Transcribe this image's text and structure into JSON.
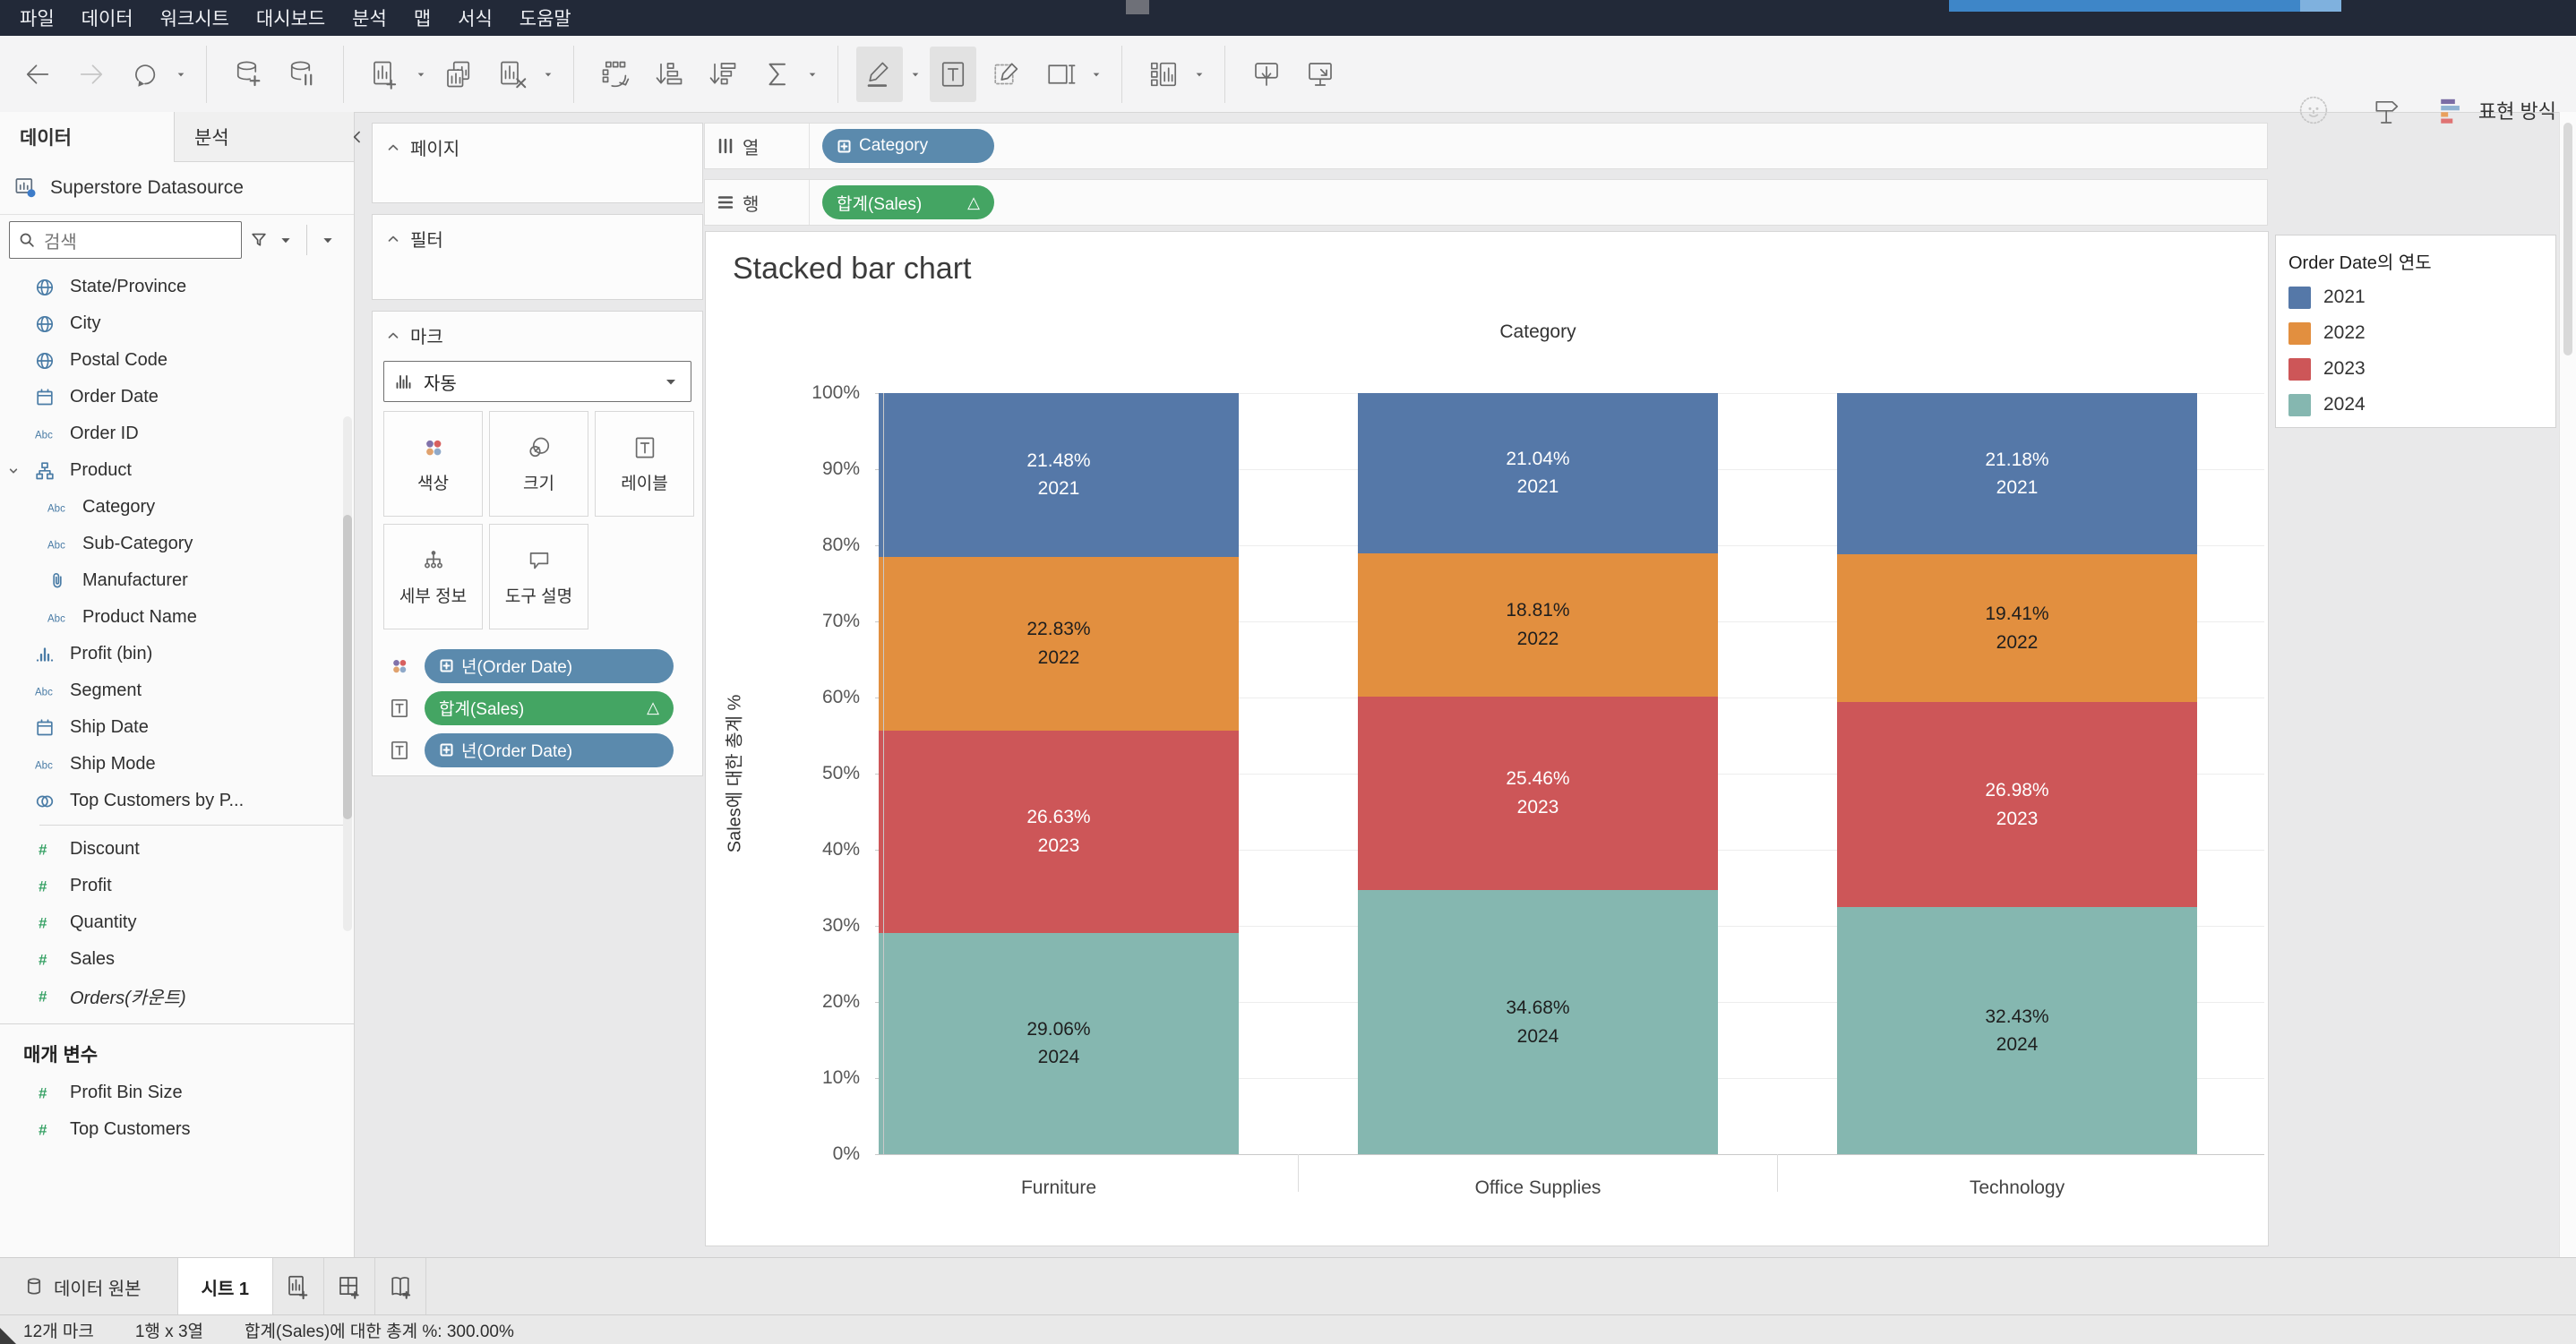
{
  "menu_bar": {
    "items": [
      "파일",
      "데이터",
      "워크시트",
      "대시보드",
      "분석",
      "맵",
      "서식",
      "도움말"
    ]
  },
  "toolbar": {
    "buttons": [
      {
        "icon": "back-icon"
      },
      {
        "icon": "forward-icon",
        "disabled": true
      },
      {
        "icon": "redo-icon",
        "caret": true
      },
      {
        "sep": true
      },
      {
        "icon": "new-datasource-icon"
      },
      {
        "icon": "pause-updates-icon"
      },
      {
        "sep": true
      },
      {
        "icon": "new-worksheet-icon",
        "caret": true
      },
      {
        "icon": "duplicate-sheet-icon"
      },
      {
        "icon": "clear-sheet-icon",
        "caret": true
      },
      {
        "sep": true
      },
      {
        "icon": "swap-axes-icon"
      },
      {
        "icon": "sort-ascending-icon"
      },
      {
        "icon": "sort-descending-icon"
      },
      {
        "icon": "totals-icon",
        "caret": true
      },
      {
        "sep": true
      },
      {
        "icon": "highlight-icon",
        "caret": true,
        "active": true
      },
      {
        "icon": "show-mark-labels-icon",
        "active": true
      },
      {
        "icon": "fix-axes-icon"
      },
      {
        "icon": "fit-icon",
        "caret": true
      },
      {
        "sep": true
      },
      {
        "icon": "show-cards-icon",
        "caret": true
      },
      {
        "sep": true
      },
      {
        "icon": "download-icon"
      },
      {
        "icon": "presentation-mode-icon"
      }
    ],
    "right_icons": [
      {
        "icon": "einstein-icon",
        "disabled": true
      },
      {
        "icon": "show-me-signpost-icon"
      }
    ],
    "show_me_label": "표현 방식"
  },
  "sidebar": {
    "tabs": [
      {
        "label": "데이터",
        "active": true
      },
      {
        "label": "분석",
        "active": false
      }
    ],
    "datasource": "Superstore Datasource",
    "search_placeholder": "검색",
    "fields": [
      {
        "icon": "globe-icon",
        "label": "State/Province"
      },
      {
        "icon": "globe-icon",
        "label": "City"
      },
      {
        "icon": "globe-icon",
        "label": "Postal Code"
      },
      {
        "icon": "calendar-icon",
        "label": "Order Date"
      },
      {
        "icon": "abc-icon",
        "label": "Order ID"
      },
      {
        "icon": "hierarchy-icon",
        "label": "Product",
        "expanded": true
      },
      {
        "icon": "abc-icon",
        "label": "Category",
        "indent": 1
      },
      {
        "icon": "abc-icon",
        "label": "Sub-Category",
        "indent": 1
      },
      {
        "icon": "paperclip-icon",
        "label": "Manufacturer",
        "indent": 1
      },
      {
        "icon": "abc-icon",
        "label": "Product Name",
        "indent": 1
      },
      {
        "icon": "histogram-icon",
        "label": "Profit (bin)"
      },
      {
        "icon": "abc-icon",
        "label": "Segment"
      },
      {
        "icon": "calendar-icon",
        "label": "Ship Date"
      },
      {
        "icon": "abc-icon",
        "label": "Ship Mode"
      },
      {
        "icon": "venn-icon",
        "label": "Top Customers by P..."
      },
      {
        "divider": true
      },
      {
        "icon": "hash-icon",
        "label": "Discount",
        "measure": true
      },
      {
        "icon": "hash-icon",
        "label": "Profit",
        "measure": true
      },
      {
        "icon": "hash-icon",
        "label": "Quantity",
        "measure": true
      },
      {
        "icon": "hash-icon",
        "label": "Sales",
        "measure": true
      },
      {
        "icon": "hash-icon",
        "label": "Orders(카운트)",
        "measure": true,
        "italic": true
      }
    ],
    "parameters_header": "매개 변수",
    "parameters": [
      {
        "icon": "hash-icon",
        "label": "Profit Bin Size"
      },
      {
        "icon": "hash-icon",
        "label": "Top Customers"
      }
    ]
  },
  "cards": {
    "pages_label": "페이지",
    "filters_label": "필터"
  },
  "marks": {
    "header": "마크",
    "type_label": "자동",
    "buttons": [
      {
        "icon": "color-icon",
        "label": "색상"
      },
      {
        "icon": "size-icon",
        "label": "크기"
      },
      {
        "icon": "label-icon",
        "label": "레이블"
      },
      {
        "icon": "detail-icon",
        "label": "세부 정보"
      },
      {
        "icon": "tooltip-icon",
        "label": "도구 설명"
      }
    ],
    "pills": [
      {
        "target_icon": "color-icon",
        "label": "년(Order Date)",
        "color": "dimension",
        "plus": true
      },
      {
        "target_icon": "label-icon",
        "label": "합계(Sales)",
        "color": "measure",
        "delta": true
      },
      {
        "target_icon": "label-icon",
        "label": "년(Order Date)",
        "color": "dimension",
        "plus": true
      }
    ]
  },
  "shelves": {
    "columns_label": "열",
    "rows_label": "행",
    "columns_pills": [
      {
        "label": "Category",
        "color": "dimension",
        "plus": true
      }
    ],
    "rows_pills": [
      {
        "label": "합계(Sales)",
        "color": "measure",
        "delta": true
      }
    ]
  },
  "chart_data": {
    "type": "bar",
    "stacked": true,
    "percent": true,
    "title": "Stacked bar chart",
    "column_header": "Category",
    "categories": [
      "Furniture",
      "Office Supplies",
      "Technology"
    ],
    "series": [
      {
        "name": "2021",
        "color": "#5578a8",
        "label_color": "#ffffff",
        "values": [
          21.48,
          21.04,
          21.18
        ]
      },
      {
        "name": "2022",
        "color": "#e28f3f",
        "label_color": "#1e1e1e",
        "values": [
          22.83,
          18.81,
          19.41
        ]
      },
      {
        "name": "2023",
        "color": "#cd5658",
        "label_color": "#ffffff",
        "values": [
          26.63,
          25.46,
          26.98
        ]
      },
      {
        "name": "2024",
        "color": "#85b7b0",
        "label_color": "#1e1e1e",
        "values": [
          29.06,
          34.68,
          32.43
        ]
      }
    ],
    "ylabel": "Sales에 대한 총계 %",
    "ylim": [
      0,
      100
    ],
    "ytick_step": 10,
    "ytick_format": "%",
    "grid": true,
    "legend_title": "Order Date의 연도",
    "legend_position": "right"
  },
  "bottom_tabs": {
    "datasource_label": "데이터 원본",
    "sheet_tab": "시트 1"
  },
  "status_bar": {
    "marks_count": "12개 마크",
    "size": "1행 x 3열",
    "total_pct": "합계(Sales)에 대한 총계 %: 300.00%"
  },
  "colors": {
    "pill_dimension": "#5b8aad",
    "pill_measure": "#44a563",
    "menubar_bg": "#222938",
    "accent_blue": "#3e86c8"
  }
}
